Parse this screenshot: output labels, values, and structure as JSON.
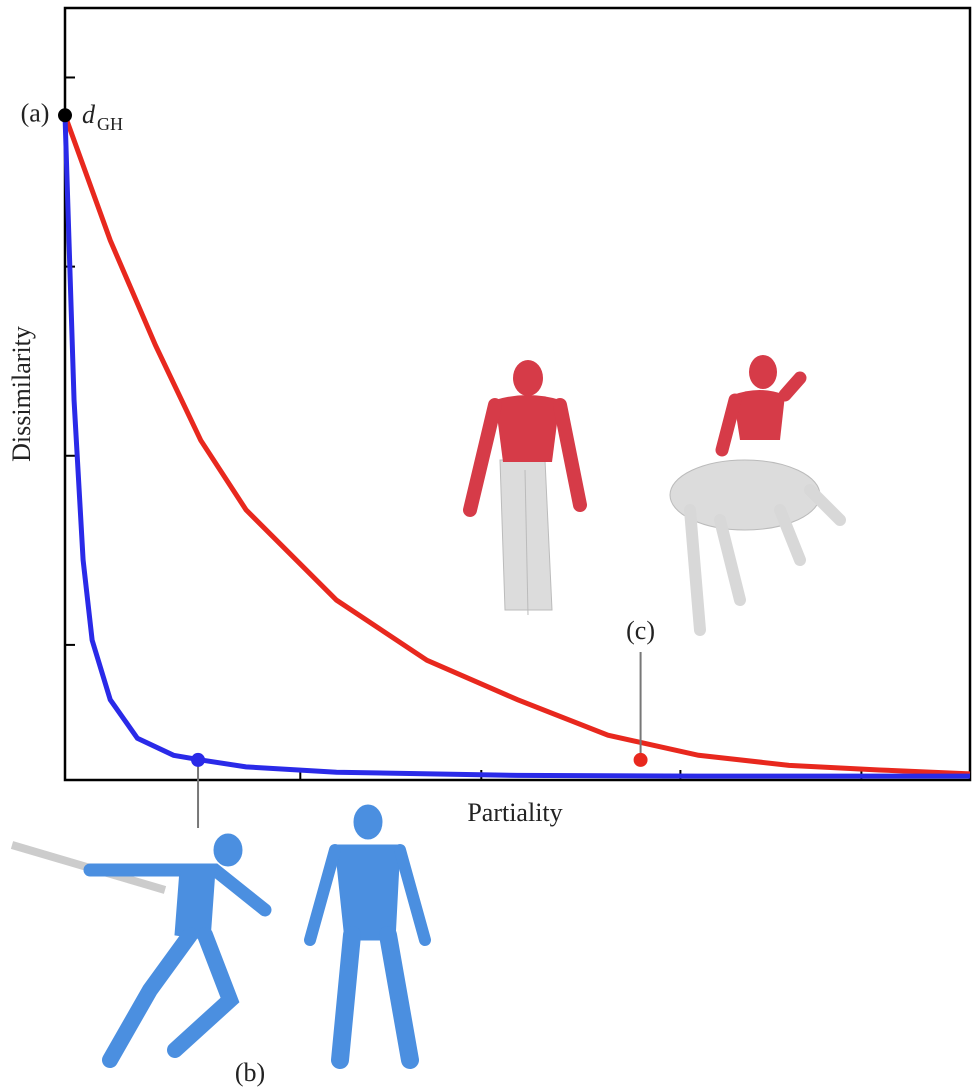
{
  "chart_data": {
    "type": "line",
    "xlabel": "Partiality",
    "ylabel": "Dissimilarity",
    "xlim": [
      0,
      1
    ],
    "ylim": [
      0,
      1
    ],
    "xticks": [
      0.26,
      0.46,
      0.68,
      0.88
    ],
    "yticks": [
      0.175,
      0.42,
      0.665,
      0.91
    ],
    "grid": false,
    "series": [
      {
        "color": "#e8281e",
        "x": [
          0,
          0.05,
          0.1,
          0.15,
          0.2,
          0.3,
          0.4,
          0.5,
          0.6,
          0.7,
          0.8,
          0.9,
          1.0
        ],
        "values": [
          0.861,
          0.699,
          0.563,
          0.44,
          0.35,
          0.233,
          0.155,
          0.104,
          0.058,
          0.032,
          0.019,
          0.013,
          0.008
        ]
      },
      {
        "color": "#2a2ae8",
        "x": [
          0,
          0.01,
          0.02,
          0.03,
          0.05,
          0.08,
          0.12,
          0.15,
          0.2,
          0.3,
          0.5,
          0.7,
          1.0
        ],
        "values": [
          0.861,
          0.492,
          0.285,
          0.181,
          0.104,
          0.054,
          0.032,
          0.026,
          0.017,
          0.01,
          0.006,
          0.005,
          0.005
        ]
      }
    ],
    "markers": [
      {
        "label": "(a)",
        "x": 0,
        "y": 0.861,
        "color": "#000000"
      },
      {
        "label": "(b)",
        "x": 0.147,
        "y": 0.026,
        "color": "#2a2ae8"
      },
      {
        "label": "(c)",
        "x": 0.636,
        "y": 0.026,
        "color": "#e8281e"
      }
    ],
    "annotation": {
      "text": "d",
      "subscript": "GH"
    }
  }
}
